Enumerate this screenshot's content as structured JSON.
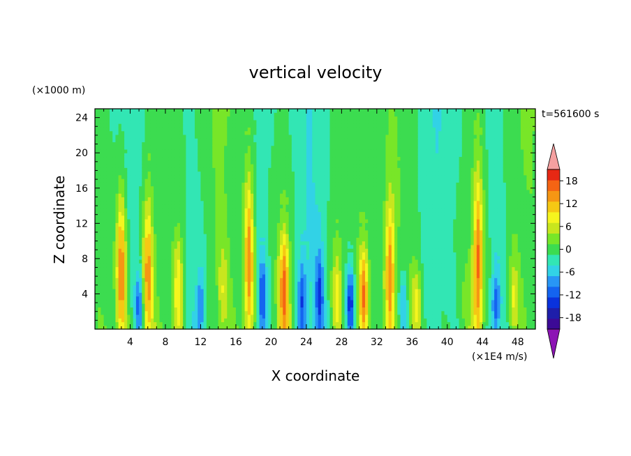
{
  "chart_data": {
    "type": "heatmap",
    "title": "vertical velocity",
    "xlabel": "X coordinate",
    "ylabel": "Z coordinate",
    "y_unit_label": "(×1000 m)",
    "x_unit_label": "(×1E4 m/s)",
    "time_label": "t=561600 s",
    "xlim": [
      0,
      50
    ],
    "ylim": [
      0,
      25
    ],
    "x_ticks": [
      "4",
      "8",
      "12",
      "16",
      "20",
      "24",
      "28",
      "32",
      "36",
      "40",
      "44",
      "48"
    ],
    "y_ticks": [
      "4",
      "8",
      "12",
      "16",
      "20",
      "24"
    ],
    "colorbar": {
      "levels": [
        -21,
        -18,
        -15,
        -12,
        -9,
        -6,
        -3,
        0,
        3,
        6,
        9,
        12,
        15,
        18,
        21
      ],
      "labels": [
        "18",
        "12",
        "6",
        "0",
        "-6",
        "-12",
        "-18"
      ],
      "label_values": [
        18,
        12,
        6,
        0,
        -6,
        -12,
        -18
      ],
      "colors": [
        "#3c0a96",
        "#1e1eaa",
        "#0a32dc",
        "#1464f0",
        "#2896f5",
        "#32d2e6",
        "#32e6b4",
        "#3cdc50",
        "#78e628",
        "#c8e61e",
        "#f5f51e",
        "#f5c814",
        "#f59614",
        "#f56414",
        "#e62814"
      ],
      "under_color": "#8c14b4",
      "over_color": "#f5a0a0"
    },
    "features": [
      {
        "x": 3.0,
        "kind": "updraft",
        "amplitude": 16,
        "top": 20
      },
      {
        "x": 6.0,
        "kind": "updraft",
        "amplitude": 14,
        "top": 19
      },
      {
        "x": 9.5,
        "kind": "updraft",
        "amplitude": 10,
        "top": 14
      },
      {
        "x": 14.5,
        "kind": "updraft",
        "amplitude": 6,
        "top": 12
      },
      {
        "x": 17.5,
        "kind": "updraft",
        "amplitude": 16,
        "top": 22
      },
      {
        "x": 21.5,
        "kind": "updraft",
        "amplitude": 16,
        "top": 14
      },
      {
        "x": 27.5,
        "kind": "updraft",
        "amplitude": 8,
        "top": 12
      },
      {
        "x": 30.5,
        "kind": "updraft",
        "amplitude": 16,
        "top": 12
      },
      {
        "x": 33.5,
        "kind": "updraft",
        "amplitude": 14,
        "top": 19
      },
      {
        "x": 36.5,
        "kind": "updraft",
        "amplitude": 8,
        "top": 9
      },
      {
        "x": 43.5,
        "kind": "updraft",
        "amplitude": 16,
        "top": 22
      },
      {
        "x": 47.5,
        "kind": "updraft",
        "amplitude": 8,
        "top": 10
      },
      {
        "x": 5.0,
        "kind": "downdraft",
        "amplitude": -10,
        "top": 8
      },
      {
        "x": 12.0,
        "kind": "downdraft",
        "amplitude": -8,
        "top": 9
      },
      {
        "x": 19.0,
        "kind": "downdraft",
        "amplitude": -12,
        "top": 10
      },
      {
        "x": 23.5,
        "kind": "downdraft",
        "amplitude": -10,
        "top": 10
      },
      {
        "x": 25.5,
        "kind": "downdraft",
        "amplitude": -10,
        "top": 11
      },
      {
        "x": 29.0,
        "kind": "downdraft",
        "amplitude": -14,
        "top": 9
      },
      {
        "x": 35.0,
        "kind": "downdraft",
        "amplitude": -8,
        "top": 8
      },
      {
        "x": 45.5,
        "kind": "downdraft",
        "amplitude": -10,
        "top": 8
      }
    ]
  }
}
